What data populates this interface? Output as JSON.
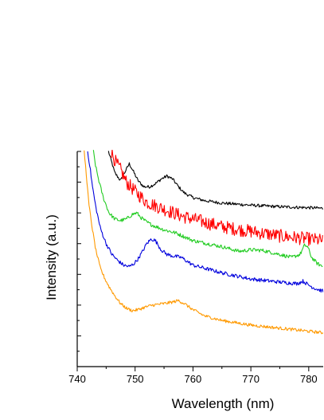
{
  "chart_data": {
    "type": "line",
    "xlabel": "Wavelength (nm)",
    "ylabel": "Intensity (a.u.)",
    "xlim": [
      740,
      782.5
    ],
    "ylim": [
      0,
      7
    ],
    "x_ticks": [
      740,
      750,
      760,
      770,
      780
    ],
    "x_tick_labels": [
      "740",
      "750",
      "760",
      "770",
      "780"
    ],
    "y_tick_labels_shown": false,
    "grid": false,
    "legend": "none",
    "series": [
      {
        "color": "#000000",
        "noise": 0.05,
        "points": [
          [
            745.4,
            7.0
          ],
          [
            746.5,
            6.3
          ],
          [
            747.5,
            6.05
          ],
          [
            748.3,
            6.35
          ],
          [
            749.0,
            6.6
          ],
          [
            749.7,
            6.35
          ],
          [
            750.5,
            6.05
          ],
          [
            751.5,
            5.85
          ],
          [
            752.5,
            5.85
          ],
          [
            753.5,
            5.95
          ],
          [
            754.5,
            6.1
          ],
          [
            755.5,
            6.2
          ],
          [
            756.5,
            6.1
          ],
          [
            757.5,
            5.85
          ],
          [
            758.5,
            5.65
          ],
          [
            760,
            5.5
          ],
          [
            762,
            5.4
          ],
          [
            765,
            5.32
          ],
          [
            770,
            5.25
          ],
          [
            775,
            5.2
          ],
          [
            780,
            5.17
          ],
          [
            782.5,
            5.15
          ]
        ]
      },
      {
        "color": "#ff0000",
        "noise": 0.22,
        "points": [
          [
            745.8,
            7.0
          ],
          [
            746.8,
            6.6
          ],
          [
            747.5,
            6.4
          ],
          [
            748.5,
            6.0
          ],
          [
            750,
            5.7
          ],
          [
            752,
            5.35
          ],
          [
            754,
            5.2
          ],
          [
            756,
            5.05
          ],
          [
            758,
            4.9
          ],
          [
            760,
            4.8
          ],
          [
            765,
            4.55
          ],
          [
            770,
            4.4
          ],
          [
            775,
            4.25
          ],
          [
            780,
            4.15
          ],
          [
            782.5,
            4.1
          ]
        ]
      },
      {
        "color": "#22cc22",
        "noise": 0.06,
        "points": [
          [
            742.8,
            7.0
          ],
          [
            743.2,
            6.5
          ],
          [
            743.8,
            6.0
          ],
          [
            744.5,
            5.5
          ],
          [
            745.5,
            5.0
          ],
          [
            746.5,
            4.8
          ],
          [
            747.5,
            4.75
          ],
          [
            748.5,
            4.8
          ],
          [
            749.5,
            4.95
          ],
          [
            750.3,
            5.0
          ],
          [
            751,
            4.85
          ],
          [
            752,
            4.7
          ],
          [
            753,
            4.6
          ],
          [
            755,
            4.45
          ],
          [
            757,
            4.35
          ],
          [
            760,
            4.1
          ],
          [
            765,
            3.9
          ],
          [
            768,
            3.75
          ],
          [
            770,
            3.8
          ],
          [
            772,
            3.78
          ],
          [
            775,
            3.65
          ],
          [
            777,
            3.55
          ],
          [
            778.5,
            3.65
          ],
          [
            779.3,
            3.95
          ],
          [
            779.8,
            3.9
          ],
          [
            780.5,
            3.55
          ],
          [
            781.5,
            3.35
          ],
          [
            782.5,
            3.25
          ]
        ]
      },
      {
        "color": "#0000dd",
        "noise": 0.06,
        "points": [
          [
            741.8,
            7.0
          ],
          [
            742.2,
            6.5
          ],
          [
            742.6,
            5.9
          ],
          [
            743.2,
            5.2
          ],
          [
            744,
            4.5
          ],
          [
            745,
            4.0
          ],
          [
            746,
            3.65
          ],
          [
            747,
            3.45
          ],
          [
            748,
            3.3
          ],
          [
            749,
            3.25
          ],
          [
            749.8,
            3.35
          ],
          [
            750.5,
            3.5
          ],
          [
            751.3,
            3.75
          ],
          [
            752,
            4.0
          ],
          [
            752.8,
            4.15
          ],
          [
            753.5,
            4.1
          ],
          [
            754.5,
            3.8
          ],
          [
            755.5,
            3.65
          ],
          [
            756.5,
            3.6
          ],
          [
            758,
            3.55
          ],
          [
            760,
            3.3
          ],
          [
            762,
            3.2
          ],
          [
            765,
            3.05
          ],
          [
            770,
            2.85
          ],
          [
            775,
            2.75
          ],
          [
            778,
            2.7
          ],
          [
            779,
            2.78
          ],
          [
            780,
            2.65
          ],
          [
            781,
            2.55
          ],
          [
            782.5,
            2.45
          ]
        ]
      },
      {
        "color": "#ff9900",
        "noise": 0.05,
        "points": [
          [
            741.2,
            7.0
          ],
          [
            741.6,
            6.2
          ],
          [
            742,
            5.3
          ],
          [
            742.6,
            4.5
          ],
          [
            743.2,
            3.8
          ],
          [
            744,
            3.2
          ],
          [
            744.8,
            2.85
          ],
          [
            745.5,
            2.6
          ],
          [
            746.5,
            2.3
          ],
          [
            747.5,
            2.05
          ],
          [
            748.5,
            1.9
          ],
          [
            749.5,
            1.82
          ],
          [
            750.5,
            1.85
          ],
          [
            751.5,
            1.92
          ],
          [
            753,
            2.0
          ],
          [
            755,
            2.05
          ],
          [
            756.5,
            2.1
          ],
          [
            757.5,
            2.15
          ],
          [
            758.5,
            2.05
          ],
          [
            760,
            1.85
          ],
          [
            762,
            1.65
          ],
          [
            765,
            1.5
          ],
          [
            770,
            1.35
          ],
          [
            775,
            1.25
          ],
          [
            780,
            1.15
          ],
          [
            782.5,
            1.1
          ]
        ]
      }
    ]
  }
}
